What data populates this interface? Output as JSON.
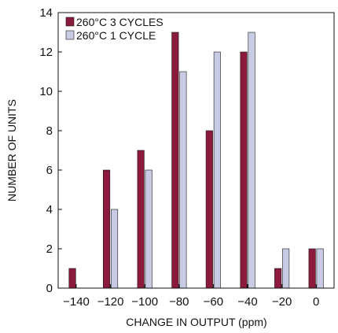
{
  "chart_data": {
    "type": "bar",
    "xlabel": "CHANGE IN OUTPUT (ppm)",
    "ylabel": "NUMBER OF UNITS",
    "categories": [
      "−140",
      "−120",
      "−100",
      "−80",
      "−60",
      "−40",
      "−20",
      "0"
    ],
    "ylim": [
      0,
      14
    ],
    "yticks": [
      "0",
      "2",
      "4",
      "6",
      "8",
      "10",
      "12",
      "14"
    ],
    "grid": false,
    "legend_position": "top-left",
    "series": [
      {
        "name": "260°C 3 CYCLES",
        "color": "#8b1a3c",
        "values": [
          1,
          6,
          7,
          13,
          8,
          12,
          1,
          2
        ]
      },
      {
        "name": "260°C 1 CYCLE",
        "color": "#c8cbe3",
        "values": [
          0,
          4,
          6,
          11,
          12,
          13,
          2,
          2
        ]
      }
    ]
  }
}
